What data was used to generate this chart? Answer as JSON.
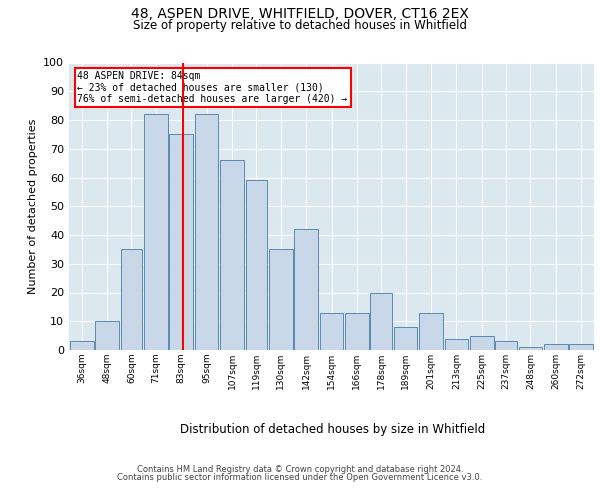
{
  "title1": "48, ASPEN DRIVE, WHITFIELD, DOVER, CT16 2EX",
  "title2": "Size of property relative to detached houses in Whitfield",
  "xlabel": "Distribution of detached houses by size in Whitfield",
  "ylabel": "Number of detached properties",
  "bin_labels": [
    "36sqm",
    "48sqm",
    "60sqm",
    "71sqm",
    "83sqm",
    "95sqm",
    "107sqm",
    "119sqm",
    "130sqm",
    "142sqm",
    "154sqm",
    "166sqm",
    "178sqm",
    "189sqm",
    "201sqm",
    "213sqm",
    "225sqm",
    "237sqm",
    "248sqm",
    "260sqm",
    "272sqm"
  ],
  "bar_values": [
    3,
    10,
    35,
    82,
    75,
    82,
    66,
    59,
    35,
    42,
    13,
    13,
    20,
    8,
    13,
    4,
    5,
    3,
    1,
    2,
    2
  ],
  "bar_color": "#c8d8e8",
  "bar_edge_color": "#5a8ab0",
  "vline_x_idx": 3,
  "vline_color": "red",
  "annotation_text": "48 ASPEN DRIVE: 84sqm\n← 23% of detached houses are smaller (130)\n76% of semi-detached houses are larger (420) →",
  "annotation_box_color": "white",
  "annotation_box_edge": "red",
  "ylim": [
    0,
    100
  ],
  "yticks": [
    0,
    10,
    20,
    30,
    40,
    50,
    60,
    70,
    80,
    90,
    100
  ],
  "plot_bg_color": "#dce8f0",
  "footer1": "Contains HM Land Registry data © Crown copyright and database right 2024.",
  "footer2": "Contains public sector information licensed under the Open Government Licence v3.0.",
  "bin_edges": [
    30,
    42,
    54,
    65,
    77,
    89,
    101,
    113,
    124,
    136,
    148,
    160,
    172,
    183,
    195,
    207,
    219,
    231,
    242,
    254,
    266,
    278
  ]
}
